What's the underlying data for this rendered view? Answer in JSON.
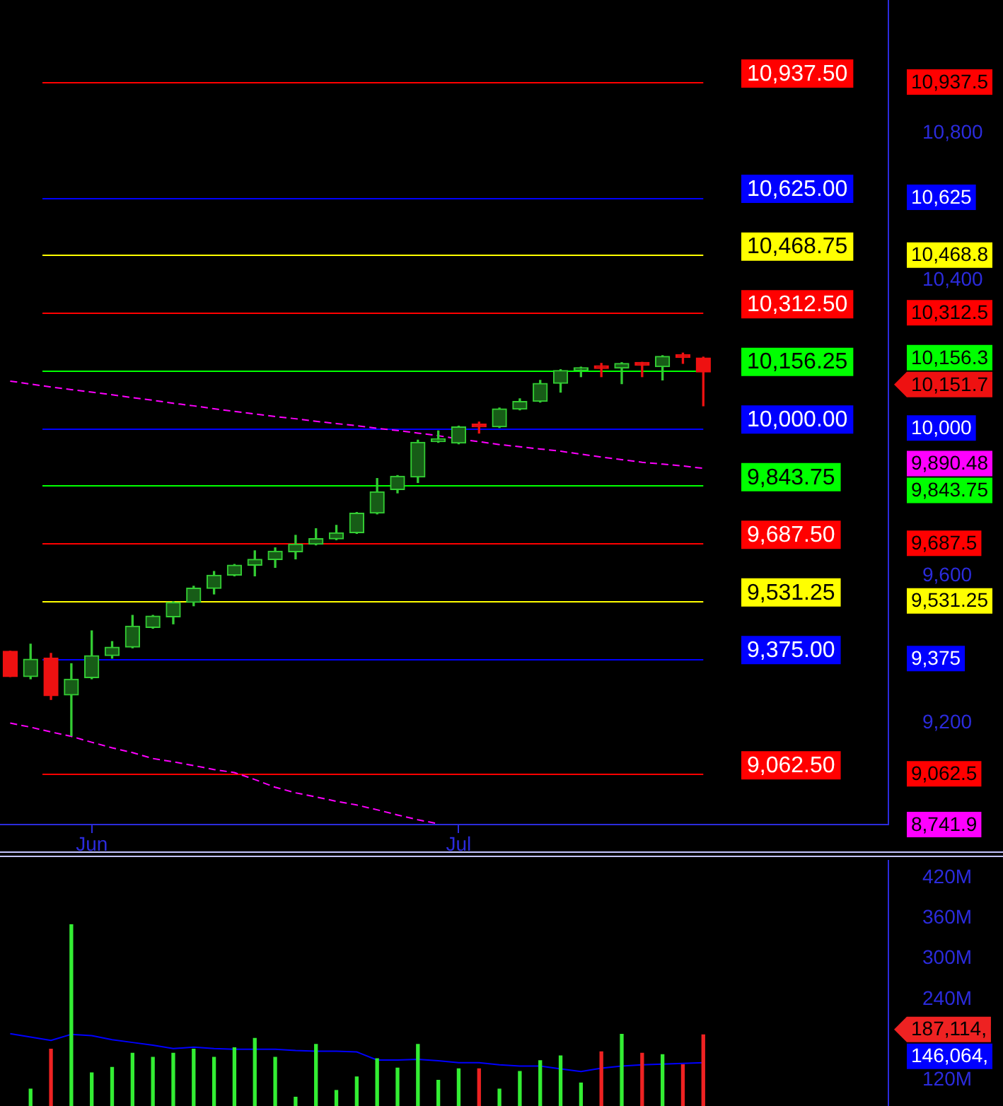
{
  "chart_data": [
    {
      "type": "candlestick",
      "categories": [
        null,
        null,
        null,
        null,
        "Jun",
        null,
        null,
        null,
        null,
        null,
        null,
        null,
        null,
        null,
        null,
        null,
        null,
        null,
        null,
        null,
        null,
        null,
        "Jul",
        null,
        null,
        null,
        null,
        null,
        null,
        null,
        null,
        null,
        null,
        null,
        null
      ],
      "ohlc": [
        [
          9395,
          9395,
          9326,
          9326
        ],
        [
          9326,
          9414,
          9320,
          9373
        ],
        [
          9376,
          9389,
          9264,
          9274
        ],
        [
          9276,
          9361,
          9166,
          9319
        ],
        [
          9323,
          9450,
          9320,
          9383
        ],
        [
          9383,
          9421,
          9376,
          9406
        ],
        [
          9406,
          9492,
          9404,
          9463
        ],
        [
          9459,
          9492,
          9457,
          9490
        ],
        [
          9488,
          9529,
          9469,
          9527
        ],
        [
          9527,
          9571,
          9518,
          9566
        ],
        [
          9565,
          9611,
          9550,
          9601
        ],
        [
          9601,
          9630,
          9599,
          9628
        ],
        [
          9628,
          9667,
          9599,
          9644
        ],
        [
          9643,
          9675,
          9622,
          9666
        ],
        [
          9664,
          9709,
          9645,
          9685
        ],
        [
          9685,
          9727,
          9683,
          9700
        ],
        [
          9699,
          9736,
          9697,
          9716
        ],
        [
          9716,
          9771,
          9714,
          9769
        ],
        [
          9769,
          9863,
          9767,
          9827
        ],
        [
          9833,
          9871,
          9824,
          9869
        ],
        [
          9867,
          9967,
          9852,
          9961
        ],
        [
          9963,
          9992,
          9961,
          9965
        ],
        [
          9959,
          10005,
          9957,
          10003
        ],
        [
          10004,
          10016,
          9986,
          10003
        ],
        [
          10003,
          10054,
          10001,
          10052
        ],
        [
          10051,
          10079,
          10049,
          10072
        ],
        [
          10072,
          10129,
          10070,
          10121
        ],
        [
          10121,
          10158,
          10097,
          10156
        ],
        [
          10156,
          10165,
          10139,
          10163
        ],
        [
          10163,
          10175,
          10139,
          10161
        ],
        [
          10162,
          10177,
          10120,
          10175
        ],
        [
          10176,
          10178,
          10139,
          10170
        ],
        [
          10166,
          10196,
          10130,
          10194
        ],
        [
          10193,
          10203,
          10175,
          10191
        ],
        [
          10190,
          10192,
          10060,
          10151.7
        ]
      ],
      "colors": [
        "#ee1111",
        "#33cc33",
        "#ee1111",
        "#33cc33",
        "#33cc33",
        "#33cc33",
        "#33cc33",
        "#33cc33",
        "#33cc33",
        "#33cc33",
        "#33cc33",
        "#33cc33",
        "#33cc33",
        "#33cc33",
        "#33cc33",
        "#33cc33",
        "#33cc33",
        "#33cc33",
        "#33cc33",
        "#33cc33",
        "#33cc33",
        "#33cc33",
        "#33cc33",
        "#ee1111",
        "#33cc33",
        "#33cc33",
        "#33cc33",
        "#33cc33",
        "#33cc33",
        "#ee1111",
        "#33cc33",
        "#ee1111",
        "#33cc33",
        "#ee1111",
        "#ee1111"
      ],
      "series": [
        {
          "type": "line",
          "color": "#ff00ff",
          "values": [
            10127,
            10119,
            10111,
            10104,
            10097,
            10090,
            10082,
            10075,
            10067,
            10060,
            10052,
            10045,
            10038,
            10031,
            10025,
            10018,
            10012,
            10006,
            9999,
            9993,
            9986,
            9979,
            9970,
            9963,
            9955,
            9949,
            9943,
            9937,
            9929,
            9921,
            9914,
            9907,
            9902,
            9897,
            9890.48
          ]
        },
        {
          "type": "line",
          "color": "#ff00ff",
          "values": [
            9200,
            9189,
            9176,
            9164,
            9148,
            9133,
            9120,
            9104,
            9095,
            9085,
            9074,
            9066,
            9047,
            9026,
            9011,
            9000,
            8988,
            8978,
            8965,
            8951,
            8938,
            8927,
            null,
            null,
            null,
            null,
            null,
            null,
            null,
            null,
            null,
            null,
            null,
            null,
            null
          ]
        }
      ],
      "line_style": "dashed",
      "ylim": [
        8925,
        11160
      ],
      "yticks": [
        {
          "value": 9200,
          "label": "9,200"
        },
        {
          "value": 9600,
          "label": "9,600"
        },
        {
          "value": 10400,
          "label": "10,400"
        },
        {
          "value": 10800,
          "label": "10,800"
        }
      ],
      "ref_lines": [
        {
          "axis": "y",
          "value": 10937.5,
          "label": "10,937.50",
          "color": "#ff0000"
        },
        {
          "axis": "y",
          "value": 10625,
          "label": "10,625.00",
          "color": "#0000ff"
        },
        {
          "axis": "y",
          "value": 10468.75,
          "label": "10,468.75",
          "color": "#ffff00"
        },
        {
          "axis": "y",
          "value": 10312.5,
          "label": "10,312.50",
          "color": "#ff0000"
        },
        {
          "axis": "y",
          "value": 10156.25,
          "label": "10,156.25",
          "color": "#00ff00"
        },
        {
          "axis": "y",
          "value": 10000,
          "label": "10,000.00",
          "color": "#0000ff"
        },
        {
          "axis": "y",
          "value": 9843.75,
          "label": "9,843.75",
          "color": "#00ff00"
        },
        {
          "axis": "y",
          "value": 9687.5,
          "label": "9,687.50",
          "color": "#ff0000"
        },
        {
          "axis": "y",
          "value": 9531.25,
          "label": "9,531.25",
          "color": "#ffff00"
        },
        {
          "axis": "y",
          "value": 9375,
          "label": "9,375.00",
          "color": "#0000ff"
        },
        {
          "axis": "y",
          "value": 9062.5,
          "label": "9,062.50",
          "color": "#ff0000"
        }
      ],
      "annotations": [
        "10,937.5",
        "10,625",
        "10,468.8",
        "10,312.5",
        "10,156.3",
        "10,000",
        "9,843.75",
        "9,687.5",
        "9,531.25",
        "9,375",
        "9,062.5",
        "10,151.7",
        "9,890.48",
        "8,741.9"
      ]
    },
    {
      "type": "bar",
      "categories": [
        null,
        null,
        null,
        null,
        null,
        null,
        null,
        null,
        null,
        null,
        null,
        null,
        null,
        null,
        null,
        null,
        null,
        null,
        null,
        null,
        null,
        null,
        null,
        null,
        null,
        null,
        null,
        null,
        null,
        null,
        null,
        null,
        null,
        null,
        null
      ],
      "series": [
        {
          "type": "bar",
          "colors": [
            null,
            "#33ee33",
            "#ee2222",
            "#33ee33",
            "#33ee33",
            "#33ee33",
            "#33ee33",
            "#33ee33",
            "#33ee33",
            "#33ee33",
            "#33ee33",
            "#33ee33",
            "#33ee33",
            "#33ee33",
            "#33ee33",
            "#33ee33",
            "#33ee33",
            "#33ee33",
            "#33ee33",
            "#33ee33",
            "#33ee33",
            "#33ee33",
            "#33ee33",
            "#ee2222",
            "#33ee33",
            "#33ee33",
            "#33ee33",
            "#33ee33",
            "#33ee33",
            "#ee2222",
            "#33ee33",
            "#ee2222",
            "#33ee33",
            "#ee2222",
            "#ee2222"
          ],
          "values": [
            null,
            107000000,
            166000000,
            350000000,
            131000000,
            139000000,
            160000000,
            154000000,
            160000000,
            166000000,
            154000000,
            168000000,
            182000000,
            154000000,
            95000000,
            173000000,
            105000000,
            125000000,
            152000000,
            138000000,
            173000000,
            120000000,
            137000000,
            137000000,
            107000000,
            133000000,
            149000000,
            156000000,
            116000000,
            162000000,
            188000000,
            160000000,
            158000000,
            143000000,
            187114000
          ]
        },
        {
          "type": "line",
          "color": "#0000ff",
          "values": [
            189000000,
            184000000,
            179000000,
            188000000,
            186000000,
            180000000,
            176000000,
            172000000,
            167000000,
            169000000,
            167000000,
            166000000,
            166000000,
            166000000,
            164000000,
            163000000,
            163000000,
            162000000,
            150000000,
            150000000,
            151000000,
            149000000,
            146000000,
            146000000,
            143000000,
            141000000,
            141000000,
            137000000,
            133000000,
            138000000,
            141000000,
            143000000,
            144000000,
            145000000,
            146064000
          ]
        }
      ],
      "ylim": [
        82000000,
        446000000
      ],
      "yticks": [
        {
          "value": 120000000,
          "label": "120M"
        },
        {
          "value": 240000000,
          "label": "240M"
        },
        {
          "value": 300000000,
          "label": "300M"
        },
        {
          "value": 360000000,
          "label": "360M"
        },
        {
          "value": 420000000,
          "label": "420M"
        }
      ],
      "tick_labels": "y",
      "annotations": [
        "187,114,",
        "146,064,"
      ]
    }
  ]
}
